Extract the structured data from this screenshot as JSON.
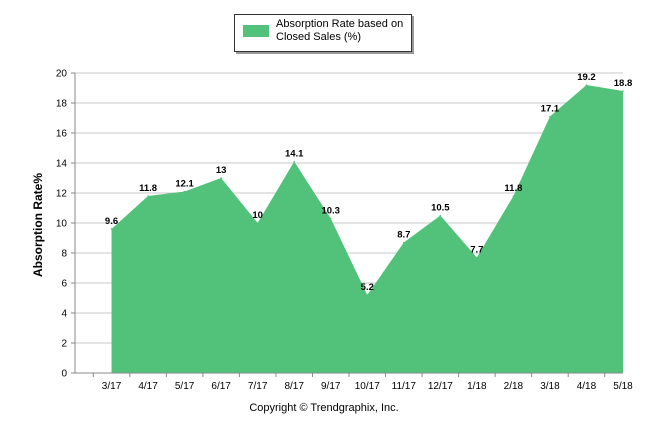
{
  "legend": {
    "label": "Absorption Rate based on Closed Sales (%)"
  },
  "footer": {
    "copyright": "Copyright © Trendgraphix, Inc."
  },
  "colors": {
    "area": "#52c27a",
    "grid": "#c8c8c8",
    "axis": "#888888"
  },
  "chart_data": {
    "type": "area",
    "categories": [
      "3/17",
      "4/17",
      "5/17",
      "6/17",
      "7/17",
      "8/17",
      "9/17",
      "10/17",
      "11/17",
      "12/17",
      "1/18",
      "2/18",
      "3/18",
      "4/18",
      "5/18"
    ],
    "series": [
      {
        "name": "Absorption Rate based on Closed Sales (%)",
        "values": [
          9.6,
          11.8,
          12.1,
          13,
          10,
          14.1,
          10.3,
          5.2,
          8.7,
          10.5,
          7.7,
          11.8,
          17.1,
          19.2,
          18.8
        ],
        "labels": [
          "9.6",
          "11.8",
          "12.1",
          "13",
          "10",
          "14.1",
          "10.3",
          "5.2",
          "8.7",
          "10.5",
          "7.7",
          "11.8",
          "17.1",
          "19.2",
          "18.8"
        ]
      }
    ],
    "ylabel": "Absorption Rate%",
    "xlabel": "",
    "ylim": [
      0,
      20
    ],
    "yticks": [
      0,
      2,
      4,
      6,
      8,
      10,
      12,
      14,
      16,
      18,
      20
    ],
    "ytick_labels": [
      "0",
      "2",
      "4",
      "6",
      "8",
      "10",
      "12",
      "14",
      "16",
      "18",
      "20"
    ],
    "grid": true,
    "legend_position": "top-center"
  }
}
